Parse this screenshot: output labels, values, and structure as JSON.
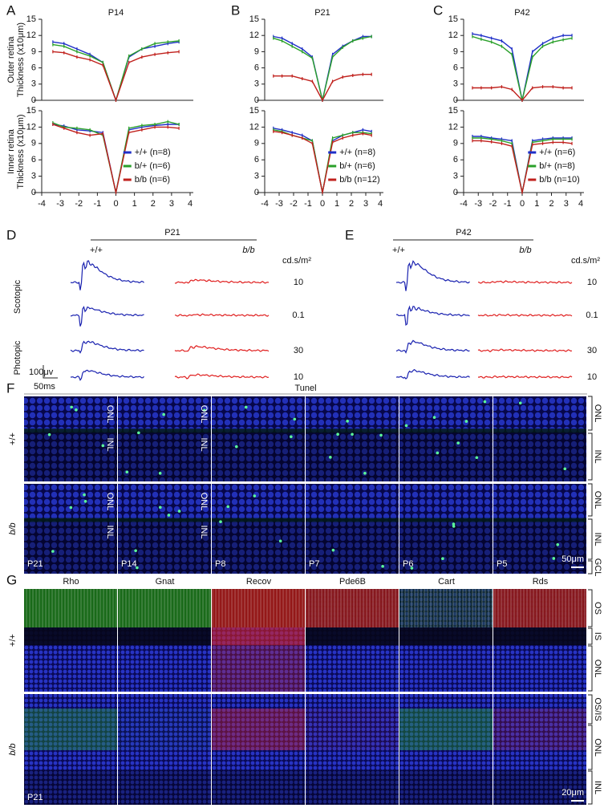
{
  "chart_data": [
    {
      "type": "line",
      "panel": "A",
      "title": "P14",
      "ylabel": [
        "Outer retina",
        "Thickness (x10μm)"
      ],
      "x": [
        -3.4,
        -2.8,
        -2.1,
        -1.4,
        -0.7,
        0,
        0.7,
        1.4,
        2.1,
        2.8,
        3.4
      ],
      "xlim": [
        -4,
        4
      ],
      "ylim": [
        0,
        15
      ],
      "yticks": [
        0,
        3,
        6,
        9,
        12,
        15
      ],
      "series": [
        {
          "color": "#1f2fc8",
          "values": [
            10.8,
            10.5,
            9.5,
            8.5,
            7,
            0,
            8,
            9.5,
            10,
            10.5,
            10.8
          ]
        },
        {
          "color": "#2aa02a",
          "values": [
            10.3,
            10,
            9,
            8.2,
            7,
            0,
            8.2,
            9.5,
            10.5,
            10.8,
            11
          ]
        },
        {
          "color": "#c0201c",
          "values": [
            9,
            8.8,
            8,
            7.5,
            6.5,
            0,
            7,
            8,
            8.5,
            8.8,
            9
          ]
        }
      ]
    },
    {
      "type": "line",
      "ylabel": [
        "Inner retina",
        "Thickness (x10μm)"
      ],
      "x": [
        -3.4,
        -2.8,
        -2.1,
        -1.4,
        -0.7,
        0,
        0.7,
        1.4,
        2.1,
        2.8,
        3.4
      ],
      "xlim": [
        -4,
        4
      ],
      "xticks": [
        -4,
        -3,
        -2,
        -1,
        0,
        1,
        2,
        3,
        4
      ],
      "ylim": [
        0,
        15
      ],
      "yticks": [
        0,
        3,
        6,
        9,
        12,
        15
      ],
      "series": [
        {
          "name": "+/+ (n=8)",
          "color": "#1f2fc8",
          "values": [
            12.5,
            12.2,
            11.5,
            11.3,
            11,
            0,
            11.5,
            12,
            12.3,
            12.5,
            12.5
          ]
        },
        {
          "name": "b/+ (n=6)",
          "color": "#2aa02a",
          "values": [
            12.8,
            12,
            11.8,
            11.5,
            10.5,
            0,
            11.8,
            12.3,
            12.5,
            13,
            12.5
          ]
        },
        {
          "name": "b/b (n=6)",
          "color": "#c0201c",
          "values": [
            12.5,
            11.8,
            11,
            10.5,
            10.8,
            0,
            11,
            11.5,
            12,
            12,
            11.8
          ]
        }
      ]
    },
    {
      "type": "line",
      "panel": "B",
      "title": "P21",
      "x": [
        -3.4,
        -2.8,
        -2.1,
        -1.4,
        -0.7,
        0,
        0.7,
        1.4,
        2.1,
        2.8,
        3.4
      ],
      "xlim": [
        -4,
        4
      ],
      "ylim": [
        0,
        15
      ],
      "yticks": [
        0,
        3,
        6,
        9,
        12,
        15
      ],
      "series": [
        {
          "color": "#1f2fc8",
          "values": [
            11.8,
            11.5,
            10.5,
            9.5,
            8,
            0,
            8.5,
            10,
            11,
            11.8,
            11.8
          ]
        },
        {
          "color": "#2aa02a",
          "values": [
            11.5,
            11,
            10,
            9,
            7.8,
            0,
            8,
            9.8,
            11,
            11.5,
            11.8
          ]
        },
        {
          "color": "#c0201c",
          "values": [
            4.5,
            4.5,
            4.5,
            4,
            3.5,
            0,
            3.5,
            4.3,
            4.6,
            4.8,
            4.8
          ]
        }
      ]
    },
    {
      "type": "line",
      "x": [
        -3.4,
        -2.8,
        -2.1,
        -1.4,
        -0.7,
        0,
        0.7,
        1.4,
        2.1,
        2.8,
        3.4
      ],
      "xlim": [
        -4,
        4
      ],
      "xticks": [
        -4,
        -3,
        -2,
        -1,
        0,
        1,
        2,
        3,
        4
      ],
      "ylim": [
        0,
        15
      ],
      "yticks": [
        0,
        3,
        6,
        9,
        12,
        15
      ],
      "series": [
        {
          "name": "+/+ (n=8)",
          "color": "#1f2fc8",
          "values": [
            11.8,
            11.5,
            11,
            10.5,
            9.5,
            0,
            9.5,
            10.5,
            11,
            11.5,
            11.2
          ]
        },
        {
          "name": "b/+ (n=6)",
          "color": "#2aa02a",
          "values": [
            11.5,
            11.2,
            10.5,
            10,
            9.5,
            0,
            10,
            10.5,
            11,
            11,
            10.8
          ]
        },
        {
          "name": "b/b (n=12)",
          "color": "#c0201c",
          "values": [
            11.2,
            11,
            10.5,
            10,
            9,
            0,
            9.2,
            10,
            10.5,
            10.8,
            10.5
          ]
        }
      ]
    },
    {
      "type": "line",
      "panel": "C",
      "title": "P42",
      "x": [
        -3.4,
        -2.8,
        -2.1,
        -1.4,
        -0.7,
        0,
        0.7,
        1.4,
        2.1,
        2.8,
        3.4
      ],
      "xlim": [
        -4,
        4
      ],
      "ylim": [
        0,
        15
      ],
      "yticks": [
        0,
        3,
        6,
        9,
        12,
        15
      ],
      "series": [
        {
          "color": "#1f2fc8",
          "values": [
            12.3,
            12,
            11.5,
            11,
            9.5,
            0,
            9,
            10.5,
            11.5,
            12,
            12
          ]
        },
        {
          "color": "#2aa02a",
          "values": [
            11.8,
            11.3,
            10.8,
            10,
            8.5,
            0,
            8,
            10,
            10.8,
            11.2,
            11.5
          ]
        },
        {
          "color": "#c0201c",
          "values": [
            2.3,
            2.3,
            2.3,
            2.5,
            2,
            0,
            2.3,
            2.5,
            2.5,
            2.3,
            2.3
          ]
        }
      ]
    },
    {
      "type": "line",
      "x": [
        -3.4,
        -2.8,
        -2.1,
        -1.4,
        -0.7,
        0,
        0.7,
        1.4,
        2.1,
        2.8,
        3.4
      ],
      "xlim": [
        -4,
        4
      ],
      "xticks": [
        -4,
        -3,
        -2,
        -1,
        0,
        1,
        2,
        3,
        4
      ],
      "ylim": [
        0,
        15
      ],
      "yticks": [
        0,
        3,
        6,
        9,
        12,
        15
      ],
      "series": [
        {
          "name": "+/+ (n=6)",
          "color": "#1f2fc8",
          "values": [
            10.3,
            10.3,
            10,
            9.8,
            9.5,
            0,
            9.5,
            9.8,
            10,
            10,
            10
          ]
        },
        {
          "name": "b/+ (n=8)",
          "color": "#2aa02a",
          "values": [
            10,
            10,
            9.8,
            9.5,
            9,
            0,
            9.2,
            9.5,
            9.8,
            9.8,
            9.8
          ]
        },
        {
          "name": "b/b (n=10)",
          "color": "#c0201c",
          "values": [
            9.5,
            9.5,
            9.3,
            9,
            8.5,
            0,
            8.8,
            9,
            9.2,
            9.2,
            9
          ]
        }
      ]
    }
  ],
  "erg": [
    {
      "panel": "D",
      "title": "P21",
      "genotypes": [
        "+/+",
        "b/b"
      ],
      "unit": "cd.s/m²",
      "conditions": [
        "Scotopic",
        "Photopic"
      ],
      "intensities": [
        "10",
        "0.1",
        "30",
        "10"
      ],
      "scale_amplitude": "100μv",
      "scale_time": "50ms"
    },
    {
      "panel": "E",
      "title": "P42",
      "genotypes": [
        "+/+",
        "b/b"
      ],
      "unit": "cd.s/m²",
      "intensities": [
        "10",
        "0.1",
        "30",
        "10"
      ]
    }
  ],
  "tunel": {
    "panel": "F",
    "title": "Tunel",
    "title_color": "#22a022",
    "genotypes": [
      "+/+",
      "b/b"
    ],
    "ages": [
      "P21",
      "P14",
      "P8",
      "P7",
      "P6",
      "P5"
    ],
    "layers": [
      "ONL",
      "INL",
      "GCL"
    ],
    "scale": "50μm"
  },
  "staining": {
    "panel": "G",
    "markers": [
      {
        "name": "Rho",
        "color": "#22a022"
      },
      {
        "name": "Gnat",
        "color": "#22a022"
      },
      {
        "name": "Recov",
        "color": "#e02020"
      },
      {
        "name": "Pde6B",
        "color": "#e02020"
      },
      {
        "name": "Cart",
        "color": "#22a022"
      },
      {
        "name": "Rds",
        "color": "#e02020"
      }
    ],
    "genotypes": [
      "+/+",
      "b/b"
    ],
    "layers_wt": [
      "OS",
      "IS",
      "ONL"
    ],
    "layers_mut": [
      "OS/IS",
      "ONL",
      "INL"
    ],
    "age": "P21",
    "scale": "20μm"
  }
}
